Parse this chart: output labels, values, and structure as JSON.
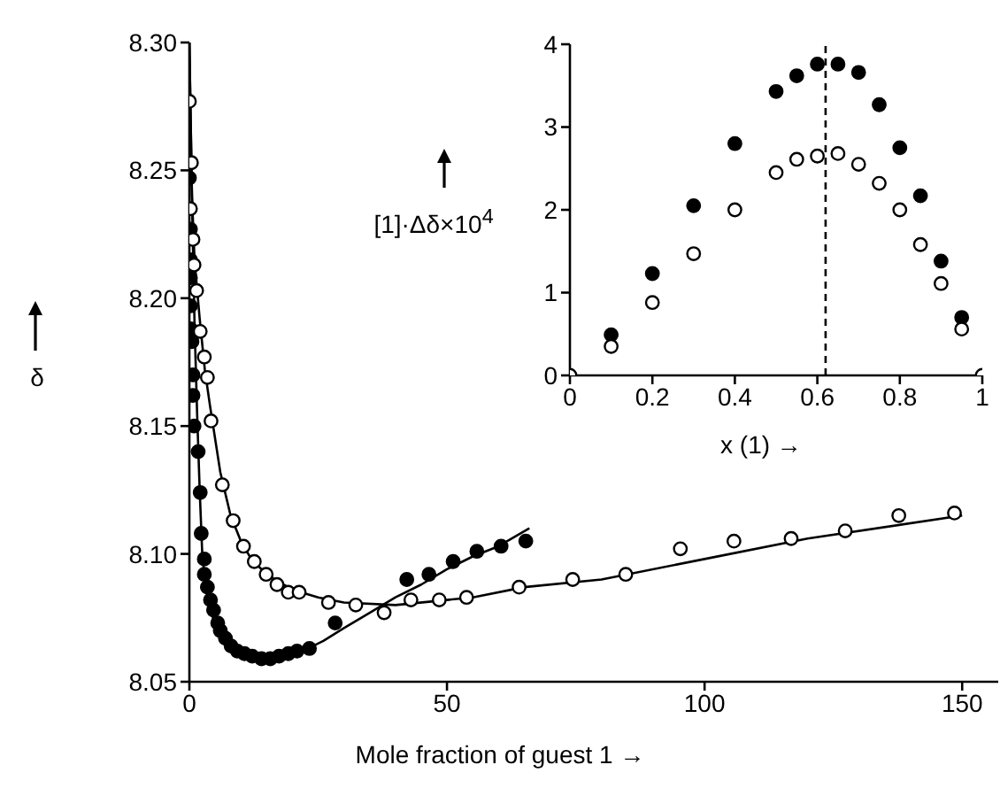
{
  "chart_data": [
    {
      "type": "scatter",
      "xlabel": "Mole fraction of guest 1 →",
      "ylabel": "δ",
      "xlim": [
        0,
        157
      ],
      "xticks": [
        0,
        50,
        100,
        150
      ],
      "ylim": [
        8.05,
        8.3
      ],
      "yticks": [
        {
          "value": 8.05,
          "label": "8.05"
        },
        {
          "value": 8.1,
          "label": "8.10"
        },
        {
          "value": 8.15,
          "label": "8.15"
        },
        {
          "value": 8.2,
          "label": "8.20"
        },
        {
          "value": 8.25,
          "label": "8.25"
        },
        {
          "value": 8.3,
          "label": "8.30"
        }
      ],
      "grid": false,
      "legend": false,
      "series": [
        {
          "type": "line",
          "color": "#000000",
          "marker": "none",
          "line_style": "solid",
          "x": [
            0,
            0.5,
            1,
            1.5,
            2,
            2.5,
            3,
            4,
            5,
            7,
            10,
            13,
            15,
            18,
            22,
            26,
            30,
            35,
            40,
            45,
            50,
            55,
            60,
            66
          ],
          "values": [
            8.3,
            8.24,
            8.19,
            8.155,
            8.125,
            8.1,
            8.09,
            8.079,
            8.072,
            8.066,
            8.062,
            8.06,
            8.059,
            8.06,
            8.062,
            8.066,
            8.071,
            8.077,
            8.083,
            8.088,
            8.094,
            8.099,
            8.103,
            8.11
          ]
        },
        {
          "type": "line",
          "color": "#000000",
          "marker": "none",
          "line_style": "solid",
          "x": [
            0,
            0.5,
            1,
            2,
            3,
            4,
            6,
            8,
            10,
            12,
            15,
            20,
            25,
            30,
            40,
            50,
            55,
            65,
            80,
            100,
            120,
            150
          ],
          "values": [
            8.3,
            8.24,
            8.215,
            8.192,
            8.172,
            8.158,
            8.132,
            8.115,
            8.105,
            8.098,
            8.092,
            8.086,
            8.083,
            8.081,
            8.08,
            8.082,
            8.083,
            8.087,
            8.09,
            8.098,
            8.106,
            8.115
          ]
        },
        {
          "type": "scatter",
          "color": "#000000",
          "marker": "circle",
          "x": [
            0,
            0.2,
            0.2,
            0.2,
            0.2,
            0.2,
            0.5,
            0.7,
            0.7,
            0.9,
            1.7,
            2.1,
            2.3,
            2.9,
            2.9,
            3.5,
            4.1,
            4.7,
            5.5,
            6,
            7,
            8.1,
            9.3,
            10.7,
            12.2,
            14,
            15.7,
            17.4,
            19.2,
            20.9,
            23.3,
            28.3,
            42.2,
            46.5,
            51.2,
            55.8,
            60.5,
            65.3
          ],
          "values": [
            8.247,
            8.227,
            8.215,
            8.208,
            8.197,
            8.188,
            8.183,
            8.17,
            8.162,
            8.15,
            8.14,
            8.124,
            8.108,
            8.098,
            8.092,
            8.087,
            8.082,
            8.078,
            8.073,
            8.07,
            8.067,
            8.064,
            8.062,
            8.061,
            8.06,
            8.059,
            8.059,
            8.06,
            8.061,
            8.062,
            8.063,
            8.073,
            8.09,
            8.092,
            8.097,
            8.101,
            8.103,
            8.105
          ]
        },
        {
          "type": "scatter",
          "color": "#ffffff",
          "marker": "circle",
          "x": [
            0,
            0.4,
            0.2,
            0.7,
            0.9,
            1.4,
            2.1,
            2.9,
            3.5,
            4.2,
            6.4,
            8.5,
            10.5,
            12.6,
            14.9,
            17,
            19.2,
            21.3,
            27,
            32.3,
            37.8,
            43,
            48.5,
            53.8,
            64,
            74.4,
            84.7,
            95.3,
            105.7,
            116.8,
            127.3,
            137.7,
            148.5
          ],
          "values": [
            8.277,
            8.253,
            8.235,
            8.223,
            8.213,
            8.203,
            8.187,
            8.177,
            8.169,
            8.152,
            8.127,
            8.113,
            8.103,
            8.097,
            8.092,
            8.088,
            8.085,
            8.085,
            8.081,
            8.08,
            8.077,
            8.082,
            8.082,
            8.083,
            8.087,
            8.09,
            8.092,
            8.102,
            8.105,
            8.106,
            8.109,
            8.115,
            8.116
          ]
        }
      ]
    },
    {
      "type": "scatter",
      "xlabel": "x (1) →",
      "ylabel": "[1]·Δδ×10$^{4}$",
      "xlim": [
        0,
        1
      ],
      "xticks": [
        0,
        0.2,
        0.4,
        0.6,
        0.8,
        1
      ],
      "ylim": [
        0,
        4
      ],
      "yticks": [
        0,
        1,
        2,
        3,
        4
      ],
      "grid": false,
      "legend": false,
      "ref_lines": [
        {
          "axis": "x",
          "value": 0.62,
          "color": "#000000",
          "line_style": "dashed"
        }
      ],
      "series": [
        {
          "type": "scatter",
          "color": "#000000",
          "marker": "circle",
          "x": [
            0.1,
            0.2,
            0.3,
            0.4,
            0.5,
            0.55,
            0.6,
            0.65,
            0.7,
            0.75,
            0.8,
            0.85,
            0.9,
            0.95
          ],
          "values": [
            0.49,
            1.23,
            2.05,
            2.8,
            3.43,
            3.62,
            3.76,
            3.76,
            3.66,
            3.27,
            2.75,
            2.17,
            1.38,
            0.7
          ]
        },
        {
          "type": "scatter",
          "color": "#ffffff",
          "marker": "circle",
          "x": [
            0,
            0.1,
            0.2,
            0.3,
            0.4,
            0.5,
            0.55,
            0.6,
            0.65,
            0.7,
            0.75,
            0.8,
            0.85,
            0.9,
            0.95,
            1
          ],
          "values": [
            0,
            0.35,
            0.88,
            1.47,
            2,
            2.45,
            2.61,
            2.65,
            2.68,
            2.55,
            2.32,
            2,
            1.58,
            1.11,
            0.56,
            0
          ]
        }
      ]
    }
  ]
}
